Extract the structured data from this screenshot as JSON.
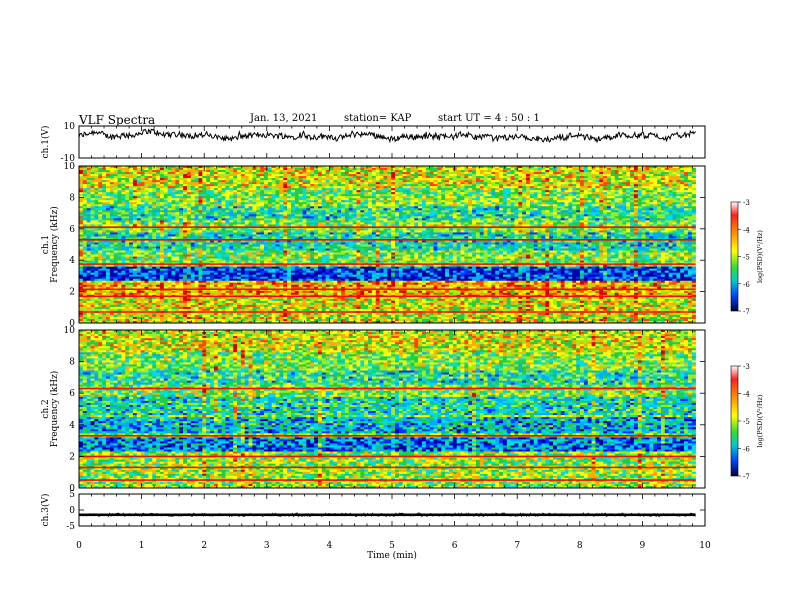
{
  "header": {
    "title": "VLF Spectra",
    "date": "Jan. 13, 2021",
    "station": "station= KAP",
    "start": "start  UT =   4 : 50 : 1"
  },
  "chart_data": [
    {
      "type": "line",
      "name": "ch1-waveform",
      "ylabel": "ch.1(V)",
      "ylim": [
        -10,
        10
      ],
      "yticks": [
        "10",
        "-10"
      ],
      "xlim": [
        0,
        10
      ],
      "x_end": 9.85,
      "y_baseline": 3.5,
      "y_amplitude": 3
    },
    {
      "type": "heatmap",
      "name": "ch1-spectrogram",
      "ylabel": "ch.1",
      "ylabel2": "Frequency (kHz)",
      "ylim": [
        0,
        10
      ],
      "yticks": [
        "0",
        "2",
        "4",
        "6",
        "8",
        "10"
      ],
      "xlim": [
        0,
        10
      ],
      "x_end": 9.85,
      "colorbar": {
        "label": "log(PSD)(V²/Hz)",
        "ticks": [
          "-3",
          "-4",
          "-5",
          "-6",
          "-7"
        ],
        "range": [
          -7,
          -3
        ]
      }
    },
    {
      "type": "heatmap",
      "name": "ch2-spectrogram",
      "ylabel": "ch.2",
      "ylabel2": "Frequency (kHz)",
      "ylim": [
        0,
        10
      ],
      "yticks": [
        "0",
        "2",
        "4",
        "6",
        "8",
        "10"
      ],
      "xlim": [
        0,
        10
      ],
      "x_end": 9.85,
      "colorbar": {
        "label": "log(PSD)(V²/Hz)",
        "ticks": [
          "-3",
          "-4",
          "-5",
          "-6",
          "-7"
        ],
        "range": [
          -7,
          -3
        ]
      }
    },
    {
      "type": "line",
      "name": "ch3-waveform",
      "ylabel": "ch.3(V)",
      "ylim": [
        -5,
        5
      ],
      "yticks": [
        "5",
        "0",
        "-5"
      ],
      "xlim": [
        0,
        10
      ],
      "x_end": 9.85,
      "y_baseline": -1.5,
      "y_amplitude": 0.4
    }
  ],
  "xaxis": {
    "label": "Time (min)",
    "ticks": [
      "0",
      "1",
      "2",
      "3",
      "4",
      "5",
      "6",
      "7",
      "8",
      "9",
      "10"
    ]
  }
}
